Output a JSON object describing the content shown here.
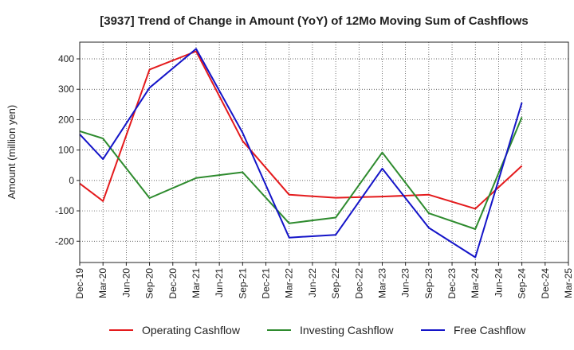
{
  "chart_data": {
    "type": "line",
    "title": "[3937]  Trend of Change in Amount (YoY) of 12Mo Moving Sum of Cashflows",
    "xlabel": "",
    "ylabel": "Amount (million yen)",
    "ylim": [
      -270,
      455
    ],
    "yticks": [
      -200,
      -100,
      0,
      100,
      200,
      300,
      400
    ],
    "grid": true,
    "legend_position": "bottom",
    "categories": [
      "Dec-19",
      "Mar-20",
      "Jun-20",
      "Sep-20",
      "Dec-20",
      "Mar-21",
      "Jun-21",
      "Sep-21",
      "Dec-21",
      "Mar-22",
      "Jun-22",
      "Sep-22",
      "Dec-22",
      "Mar-23",
      "Jun-23",
      "Sep-23",
      "Dec-23",
      "Mar-24",
      "Jun-24",
      "Sep-24",
      "Dec-24",
      "Mar-25"
    ],
    "series": [
      {
        "name": "Operating Cashflow",
        "color": "#e41a1c",
        "values": [
          -10,
          -68,
          null,
          365,
          null,
          425,
          null,
          130,
          null,
          -47,
          null,
          -57,
          null,
          -53,
          null,
          -47,
          null,
          -93,
          null,
          48,
          null,
          null
        ]
      },
      {
        "name": "Investing Cashflow",
        "color": "#2e8b2e",
        "values": [
          162,
          138,
          null,
          -58,
          null,
          8,
          null,
          27,
          null,
          -141,
          null,
          -122,
          null,
          92,
          null,
          -108,
          null,
          -160,
          null,
          208,
          null,
          null
        ]
      },
      {
        "name": "Free Cashflow",
        "color": "#1414c8",
        "values": [
          152,
          70,
          null,
          305,
          null,
          433,
          null,
          157,
          null,
          -188,
          null,
          -179,
          null,
          39,
          null,
          -156,
          null,
          -253,
          null,
          256,
          null,
          null
        ]
      }
    ]
  }
}
